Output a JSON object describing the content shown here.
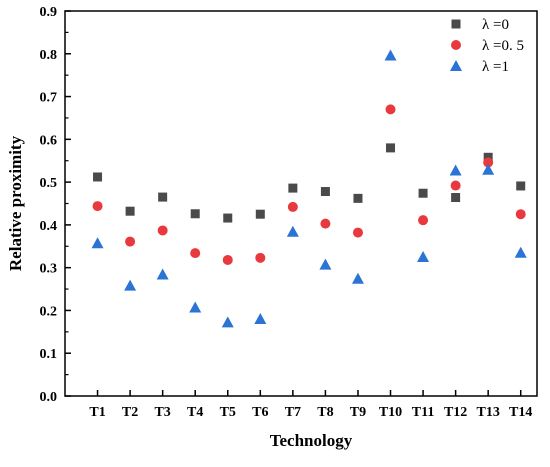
{
  "chart_data": {
    "type": "scatter",
    "title": "",
    "xlabel": "Technology",
    "ylabel": "Relative proximity",
    "categories": [
      "T1",
      "T2",
      "T3",
      "T4",
      "T5",
      "T6",
      "T7",
      "T8",
      "T9",
      "T10",
      "T11",
      "T12",
      "T13",
      "T14"
    ],
    "ylim": [
      0,
      0.9
    ],
    "yticks": [
      "0.0",
      "0.1",
      "0.2",
      "0.3",
      "0.4",
      "0.5",
      "0.6",
      "0.7",
      "0.8",
      "0.9"
    ],
    "grid": false,
    "legend_position": "top-right",
    "series": [
      {
        "name": "λ =0",
        "marker": "square",
        "color": "#4a4a4a",
        "values": [
          0.512,
          0.432,
          0.465,
          0.426,
          0.416,
          0.425,
          0.486,
          0.478,
          0.462,
          0.58,
          0.474,
          0.464,
          0.558,
          0.491
        ]
      },
      {
        "name": "λ =0. 5",
        "marker": "circle",
        "color": "#e8393f",
        "values": [
          0.444,
          0.361,
          0.387,
          0.334,
          0.318,
          0.323,
          0.442,
          0.403,
          0.382,
          0.67,
          0.411,
          0.492,
          0.546,
          0.425
        ]
      },
      {
        "name": "λ =1",
        "marker": "triangle",
        "color": "#2b73d4",
        "values": [
          0.357,
          0.258,
          0.284,
          0.207,
          0.172,
          0.18,
          0.384,
          0.307,
          0.274,
          0.796,
          0.325,
          0.527,
          0.529,
          0.335
        ]
      }
    ]
  }
}
